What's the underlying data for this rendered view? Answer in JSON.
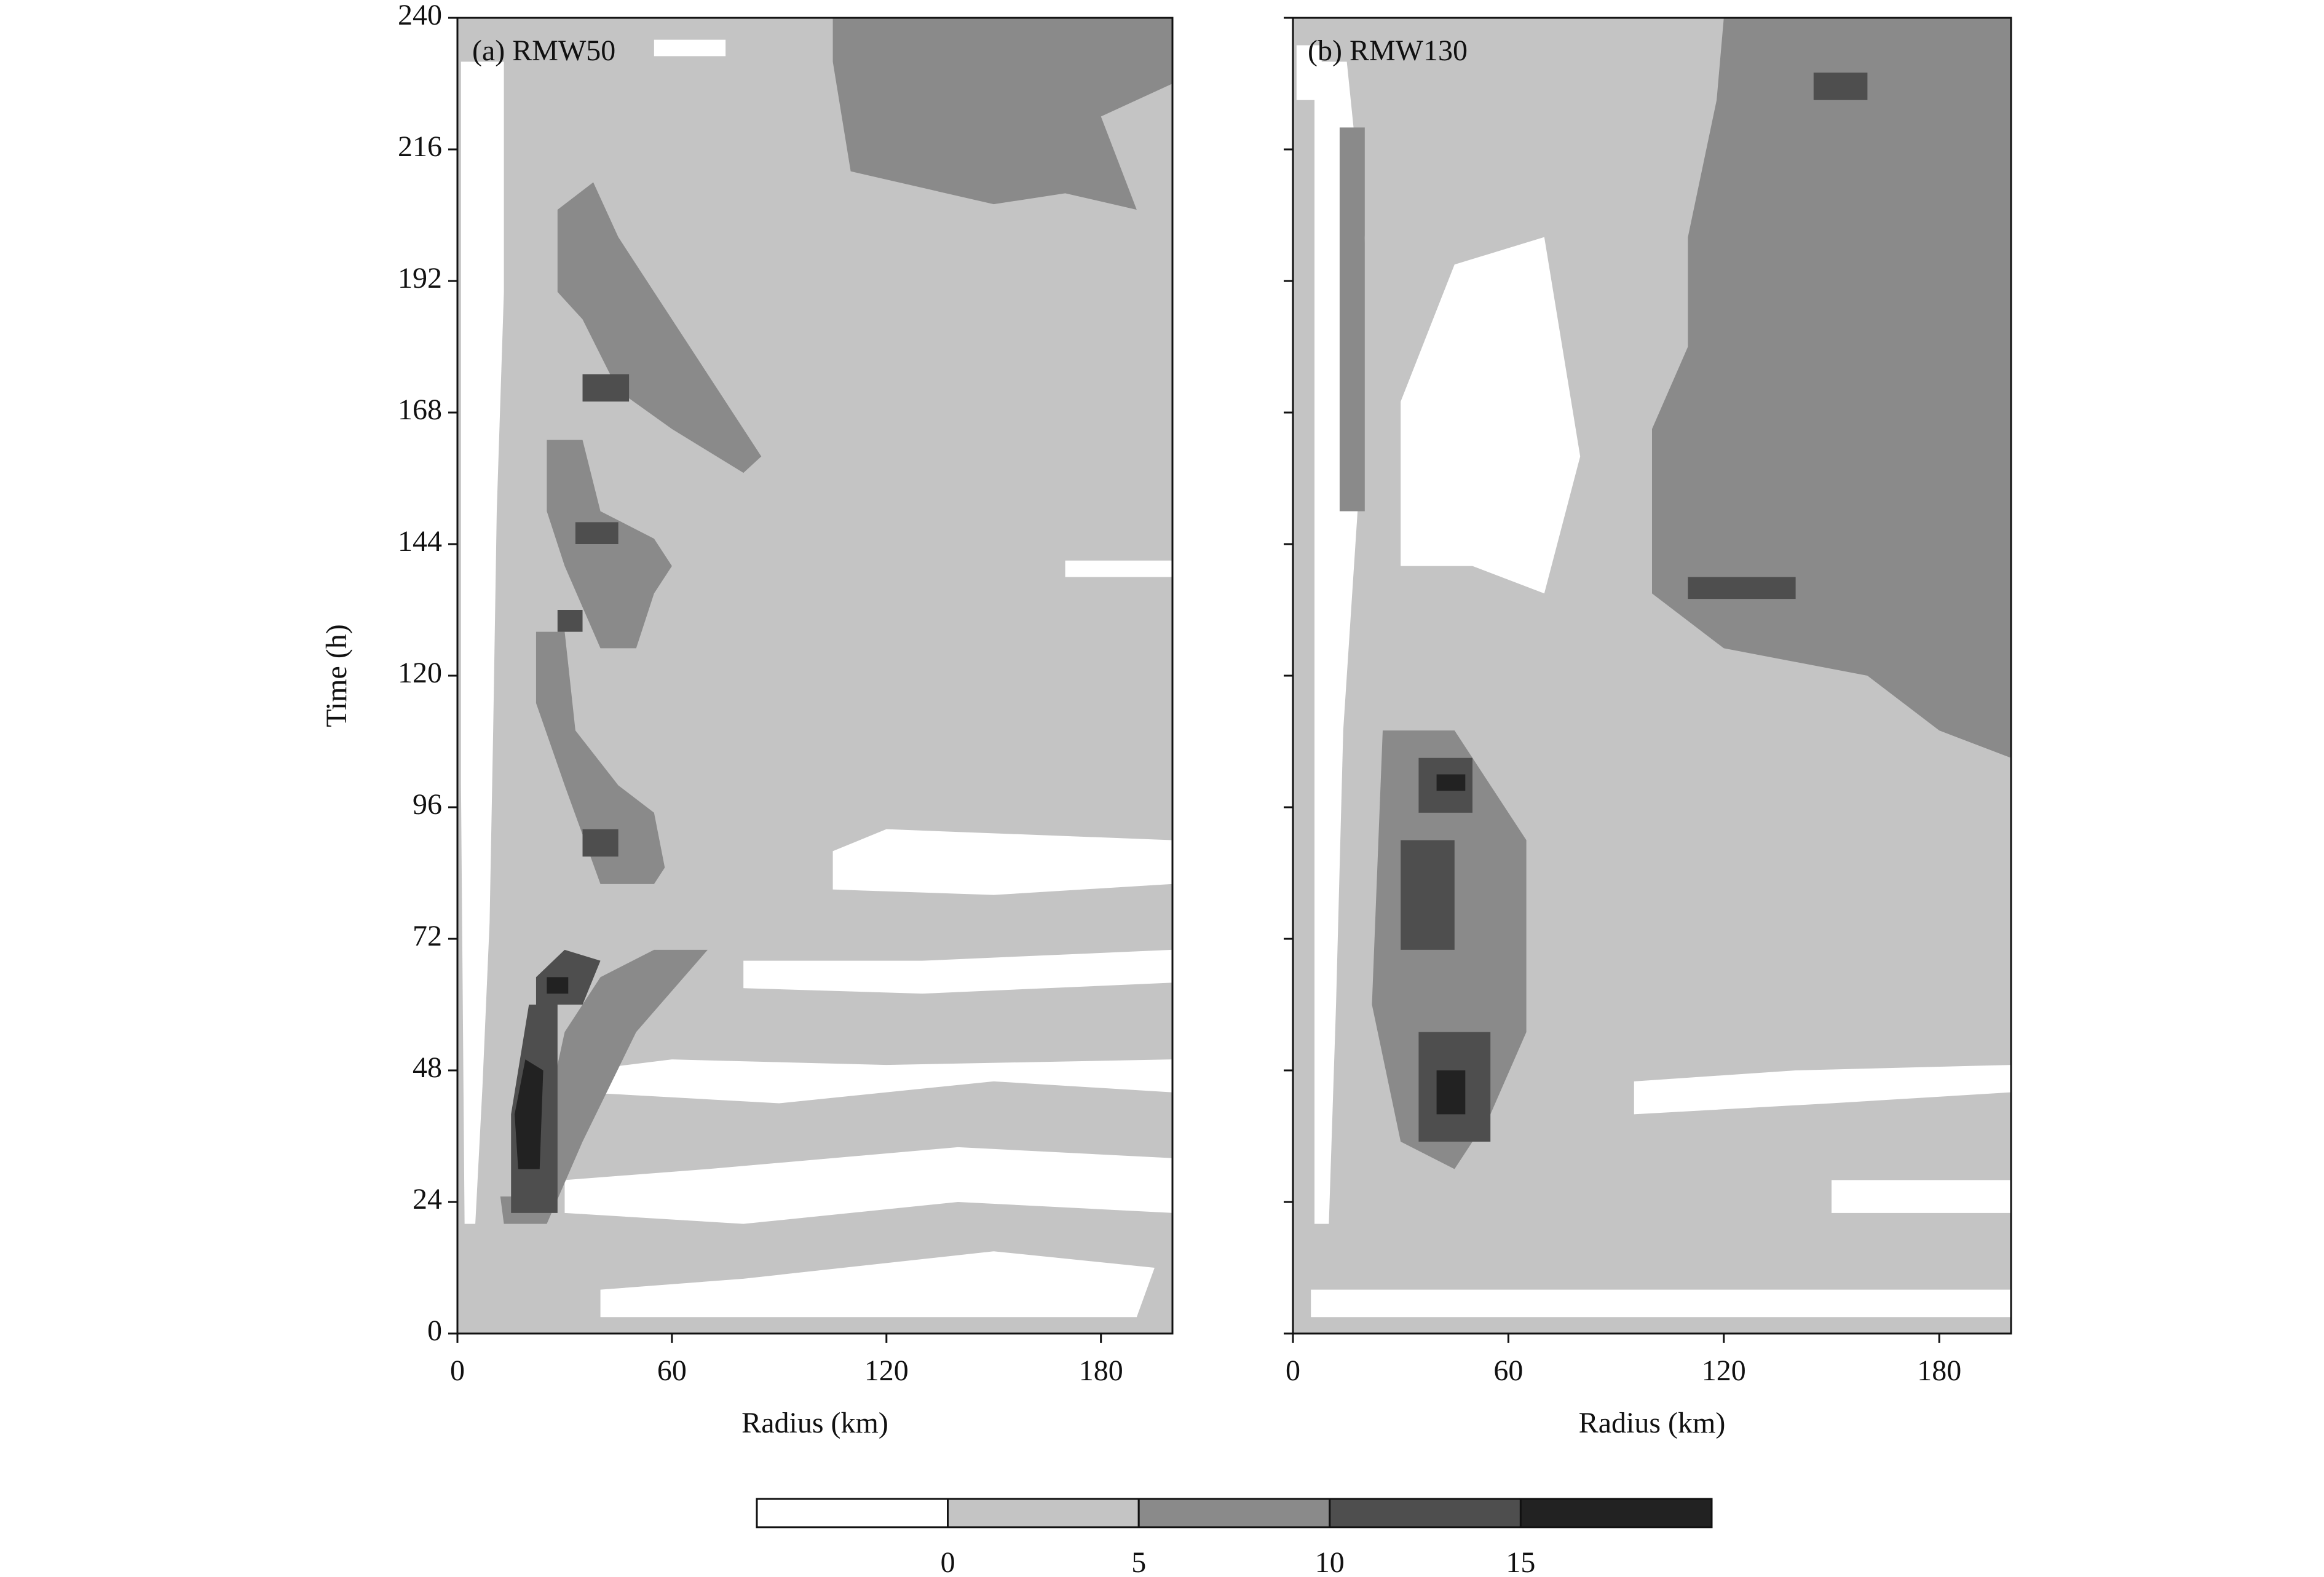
{
  "chart_data": [
    {
      "type": "contour",
      "title": "(a) RMW50",
      "xlabel": "Radius (km)",
      "ylabel": "Time (h)",
      "xlim": [
        0,
        200
      ],
      "ylim": [
        0,
        240
      ],
      "xticks": [
        0,
        60,
        120,
        180
      ],
      "yticks": [
        0,
        24,
        48,
        72,
        96,
        120,
        144,
        168,
        192,
        216,
        240
      ],
      "ytick_labels": true,
      "background": 2,
      "shapes": [
        {
          "value": -2,
          "r": [
            1,
            13,
            13,
            11,
            10,
            9,
            7,
            5,
            2,
            1
          ],
          "t": [
            232,
            232,
            190,
            150,
            110,
            75,
            45,
            20,
            20,
            100
          ]
        },
        {
          "value": -2,
          "r": [
            40,
            190,
            195,
            150,
            80,
            40
          ],
          "t": [
            3,
            3,
            12,
            15,
            10,
            8
          ]
        },
        {
          "value": -2,
          "r": [
            30,
            80,
            140,
            200,
            200,
            140,
            70,
            30
          ],
          "t": [
            22,
            20,
            24,
            22,
            32,
            34,
            30,
            28
          ]
        },
        {
          "value": -2,
          "r": [
            35,
            90,
            150,
            200,
            200,
            120,
            60,
            35
          ],
          "t": [
            44,
            42,
            46,
            44,
            50,
            49,
            50,
            48
          ]
        },
        {
          "value": -2,
          "r": [
            80,
            130,
            200,
            200,
            130,
            80
          ],
          "t": [
            63,
            62,
            64,
            70,
            68,
            68
          ]
        },
        {
          "value": -2,
          "r": [
            105,
            150,
            200,
            200,
            120,
            105
          ],
          "t": [
            81,
            80,
            82,
            90,
            92,
            88
          ]
        },
        {
          "value": -2,
          "r": [
            170,
            200,
            200,
            170
          ],
          "t": [
            138,
            138,
            141,
            141
          ]
        },
        {
          "value": -2,
          "r": [
            55,
            75,
            75,
            55
          ],
          "t": [
            233,
            233,
            236,
            236
          ]
        },
        {
          "value": 7,
          "r": [
            105,
            130,
            170,
            200,
            200,
            180,
            190,
            170,
            150,
            110,
            105
          ],
          "t": [
            240,
            240,
            240,
            240,
            228,
            222,
            205,
            208,
            206,
            212,
            232
          ]
        },
        {
          "value": 7,
          "r": [
            28,
            38,
            45,
            55,
            70,
            85,
            80,
            60,
            45,
            35,
            28
          ],
          "t": [
            205,
            210,
            200,
            190,
            175,
            160,
            157,
            165,
            172,
            185,
            190
          ]
        },
        {
          "value": 7,
          "r": [
            25,
            35,
            40,
            55,
            60,
            55,
            50,
            40,
            30,
            25
          ],
          "t": [
            163,
            163,
            150,
            145,
            140,
            135,
            125,
            125,
            140,
            150
          ]
        },
        {
          "value": 7,
          "r": [
            22,
            30,
            33,
            45,
            55,
            58,
            55,
            40,
            30,
            22
          ],
          "t": [
            128,
            128,
            110,
            100,
            95,
            85,
            82,
            82,
            100,
            115
          ]
        },
        {
          "value": 7,
          "r": [
            13,
            25,
            35,
            50,
            70,
            55,
            40,
            30,
            25,
            15,
            12
          ],
          "t": [
            20,
            20,
            35,
            55,
            70,
            70,
            65,
            55,
            40,
            25,
            25
          ]
        },
        {
          "value": 12,
          "r": [
            15,
            28,
            28,
            20,
            15
          ],
          "t": [
            22,
            22,
            60,
            60,
            40
          ]
        },
        {
          "value": 12,
          "r": [
            22,
            35,
            40,
            30,
            22
          ],
          "t": [
            60,
            60,
            68,
            70,
            65
          ]
        },
        {
          "value": 12,
          "r": [
            35,
            45,
            45,
            35
          ],
          "t": [
            87,
            87,
            92,
            92
          ]
        },
        {
          "value": 12,
          "r": [
            28,
            35,
            35,
            28
          ],
          "t": [
            128,
            128,
            132,
            132
          ]
        },
        {
          "value": 12,
          "r": [
            33,
            45,
            45,
            33
          ],
          "t": [
            144,
            144,
            148,
            148
          ]
        },
        {
          "value": 12,
          "r": [
            35,
            48,
            48,
            35
          ],
          "t": [
            170,
            170,
            175,
            175
          ]
        },
        {
          "value": 17,
          "r": [
            17,
            23,
            24,
            19,
            16
          ],
          "t": [
            30,
            30,
            48,
            50,
            40
          ]
        },
        {
          "value": 17,
          "r": [
            25,
            31,
            31,
            25
          ],
          "t": [
            62,
            62,
            65,
            65
          ]
        }
      ]
    },
    {
      "type": "contour",
      "title": "(b) RMW130",
      "xlabel": "Radius (km)",
      "xlim": [
        0,
        200
      ],
      "ylim": [
        0,
        240
      ],
      "xticks": [
        0,
        60,
        120,
        180
      ],
      "yticks": [
        0,
        24,
        48,
        72,
        96,
        120,
        144,
        168,
        192,
        216,
        240
      ],
      "ytick_labels": false,
      "background": 2,
      "shapes": [
        {
          "value": -2,
          "r": [
            6,
            15,
            20,
            18,
            14,
            12,
            10,
            6
          ],
          "t": [
            232,
            232,
            200,
            150,
            110,
            60,
            20,
            20
          ]
        },
        {
          "value": -2,
          "r": [
            30,
            50,
            70,
            80,
            70,
            45,
            30
          ],
          "t": [
            140,
            140,
            135,
            160,
            200,
            195,
            170
          ]
        },
        {
          "value": -2,
          "r": [
            95,
            150,
            200,
            200,
            140,
            95
          ],
          "t": [
            40,
            42,
            44,
            49,
            48,
            46
          ]
        },
        {
          "value": -2,
          "r": [
            150,
            200,
            200,
            150
          ],
          "t": [
            22,
            22,
            28,
            28
          ]
        },
        {
          "value": -2,
          "r": [
            5,
            200,
            200,
            5
          ],
          "t": [
            3,
            3,
            8,
            8
          ]
        },
        {
          "value": -2,
          "r": [
            1,
            8,
            8,
            1
          ],
          "t": [
            225,
            225,
            235,
            235
          ]
        },
        {
          "value": 7,
          "r": [
            120,
            200,
            200,
            180,
            160,
            120,
            100,
            100,
            110,
            110,
            118
          ],
          "t": [
            240,
            240,
            105,
            110,
            120,
            125,
            135,
            165,
            180,
            200,
            225
          ]
        },
        {
          "value": 7,
          "r": [
            13,
            20,
            20,
            13
          ],
          "t": [
            150,
            150,
            220,
            220
          ]
        },
        {
          "value": 7,
          "r": [
            25,
            45,
            55,
            65,
            65,
            55,
            45,
            30,
            22
          ],
          "t": [
            110,
            110,
            100,
            90,
            55,
            40,
            30,
            35,
            60
          ]
        },
        {
          "value": 12,
          "r": [
            30,
            45,
            45,
            30
          ],
          "t": [
            70,
            70,
            90,
            90
          ]
        },
        {
          "value": 12,
          "r": [
            35,
            55,
            55,
            35
          ],
          "t": [
            35,
            35,
            55,
            55
          ]
        },
        {
          "value": 12,
          "r": [
            35,
            50,
            50,
            35
          ],
          "t": [
            95,
            95,
            105,
            105
          ]
        },
        {
          "value": 12,
          "r": [
            145,
            160,
            160,
            145
          ],
          "t": [
            225,
            225,
            230,
            230
          ]
        },
        {
          "value": 12,
          "r": [
            110,
            140,
            140,
            110
          ],
          "t": [
            134,
            134,
            138,
            138
          ]
        },
        {
          "value": 17,
          "r": [
            40,
            48,
            48,
            40
          ],
          "t": [
            40,
            40,
            48,
            48
          ]
        },
        {
          "value": 17,
          "r": [
            40,
            48,
            48,
            40
          ],
          "t": [
            99,
            99,
            102,
            102
          ]
        }
      ]
    }
  ],
  "colorbar": {
    "levels": [
      0,
      5,
      10,
      15
    ],
    "colors": [
      "#ffffff",
      "#c4c4c4",
      "#8a8a8a",
      "#4e4e4e",
      "#222222"
    ]
  }
}
